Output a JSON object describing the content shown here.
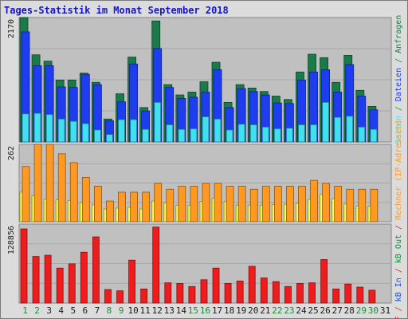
{
  "chart_data": {
    "type": "bar",
    "title": "Tages-Statistik im Monat September 2018",
    "colors": {
      "anfragen": "#1a7a4a",
      "dateien": "#1e3cf0",
      "seiten": "#40e0f0",
      "rechner": "#ffff44",
      "besuche": "#ff9922",
      "kb": "#ee1c1c",
      "label_green": "#1a8a3a",
      "label_blue": "#1a50c8"
    },
    "categories": [
      "1",
      "2",
      "3",
      "4",
      "5",
      "6",
      "7",
      "8",
      "9",
      "10",
      "11",
      "12",
      "13",
      "14",
      "15",
      "16",
      "17",
      "18",
      "19",
      "20",
      "21",
      "22",
      "23",
      "24",
      "25",
      "26",
      "27",
      "28",
      "29",
      "30",
      "31"
    ],
    "weekend_days": [
      "1",
      "2",
      "8",
      "9",
      "15",
      "16",
      "22",
      "23",
      "29",
      "30"
    ],
    "panels": [
      {
        "ymax": "2170",
        "series": [
          {
            "name": "Anfragen",
            "values": [
              2170,
              1520,
              1410,
              1080,
              1080,
              1200,
              1040,
              400,
              840,
              1480,
              600,
              2110,
              1000,
              820,
              870,
              1050,
              1390,
              690,
              1000,
              940,
              880,
              800,
              740,
              1220,
              1530,
              1470,
              1040,
              1510,
              900,
              620,
              null
            ]
          },
          {
            "name": "Dateien",
            "values": [
              1920,
              1330,
              1330,
              960,
              950,
              1180,
              1000,
              370,
              700,
              1360,
              540,
              1630,
              950,
              760,
              780,
              870,
              1260,
              600,
              930,
              880,
              820,
              680,
              670,
              1080,
              1220,
              1260,
              870,
              1350,
              800,
              560,
              null
            ]
          },
          {
            "name": "Seiten",
            "values": [
              490,
              500,
              480,
              400,
              360,
              320,
              210,
              130,
              390,
              390,
              220,
              690,
              300,
              220,
              230,
              440,
              400,
              210,
              310,
              300,
              260,
              230,
              240,
              300,
              300,
              690,
              430,
              450,
              260,
              220,
              null
            ]
          }
        ]
      },
      {
        "ymax": "262",
        "series": [
          {
            "name": "Rechner",
            "values": [
              100,
              88,
              76,
              74,
              72,
              65,
              57,
              43,
              46,
              49,
              43,
              70,
              64,
              55,
              55,
              69,
              79,
              68,
              56,
              56,
              56,
              58,
              59,
              62,
              75,
              92,
              78,
              60,
              53,
              53,
              null
            ]
          },
          {
            "name": "Besuche",
            "values": [
              187,
              262,
              262,
              230,
              200,
              150,
              120,
              70,
              100,
              100,
              100,
              130,
              110,
              120,
              120,
              130,
              130,
              120,
              120,
              110,
              120,
              120,
              120,
              120,
              140,
              130,
              120,
              110,
              110,
              110,
              null
            ]
          }
        ]
      },
      {
        "ymax": "128856",
        "series": [
          {
            "name": "KB F",
            "values": [
              121000,
              76000,
              78000,
              57000,
              64000,
              83000,
              108000,
              22000,
              20000,
              70000,
              23000,
              124000,
              33000,
              32000,
              27000,
              38000,
              57000,
              32000,
              36000,
              60000,
              41000,
              35000,
              27000,
              32000,
              33000,
              71000,
              23000,
              31000,
              26000,
              21000,
              null
            ]
          }
        ]
      }
    ],
    "right_labels": {
      "top": [
        {
          "text": "Seiten",
          "color_key": "seiten"
        },
        {
          "text": " / ",
          "color_key": "label_green"
        },
        {
          "text": "Dateien",
          "color_key": "dateien"
        },
        {
          "text": " / ",
          "color_key": "label_green"
        },
        {
          "text": "Anfragen",
          "color_key": "anfragen"
        }
      ],
      "middle": [
        {
          "text": "Besuche",
          "color_key": "besuche"
        },
        {
          "text": " / ",
          "color_key": "besuche"
        },
        {
          "text": "Rechner",
          "color_key": "rechner"
        }
      ],
      "bottom_fragments": [
        {
          "text": "kB F",
          "color_key": "kb"
        },
        {
          "text": " / ",
          "color_key": "kb"
        },
        {
          "text": "kB In",
          "color_key": "label_blue"
        },
        {
          "text": " / ",
          "color_key": "kb"
        },
        {
          "text": "kB Out",
          "color_key": "label_green"
        },
        {
          "text": " / ",
          "color_key": "kb"
        },
        {
          "text": "Rechner (IP-Adressen)",
          "color_key": "besuche"
        }
      ]
    }
  }
}
